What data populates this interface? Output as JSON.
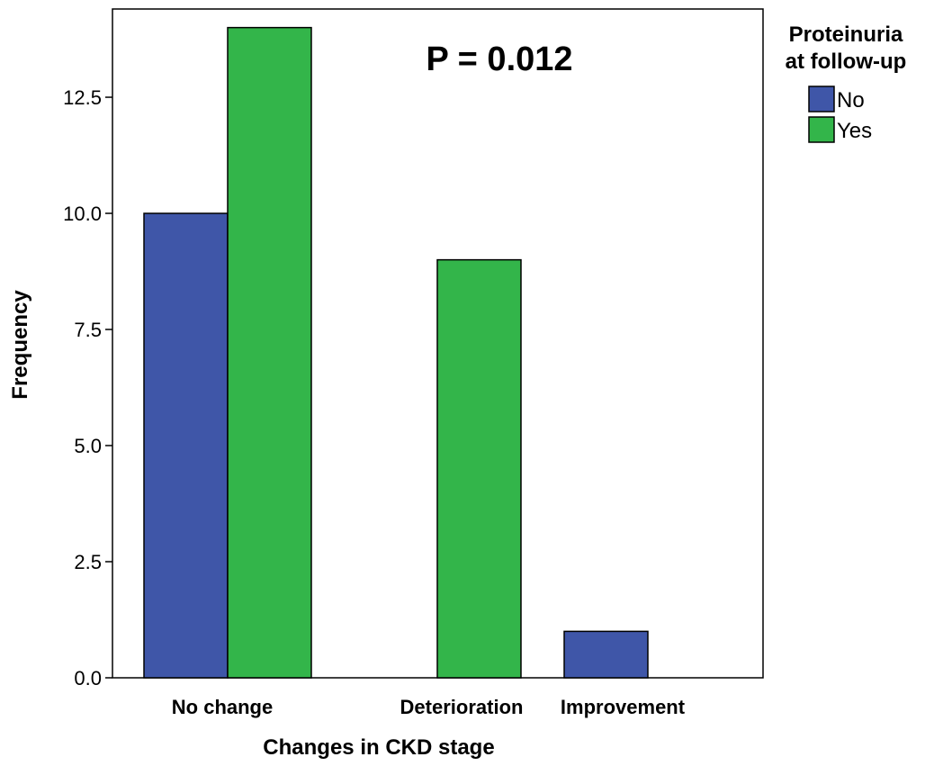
{
  "chart_data": {
    "type": "bar",
    "title": "",
    "annotation": "P = 0.012",
    "xlabel": "Changes in CKD stage",
    "ylabel": "Frequency",
    "categories": [
      "No change",
      "Deterioration",
      "Improvement"
    ],
    "series": [
      {
        "name": "No",
        "color": "#3f56a8",
        "values": [
          10,
          0,
          1
        ]
      },
      {
        "name": "Yes",
        "color": "#33b54a",
        "values": [
          14,
          9,
          0
        ]
      }
    ],
    "ylim": [
      0,
      14.4
    ],
    "yticks": [
      {
        "value": 0,
        "label": "0.0"
      },
      {
        "value": 2.5,
        "label": "2.5"
      },
      {
        "value": 5,
        "label": "5.0"
      },
      {
        "value": 7.5,
        "label": "7.5"
      },
      {
        "value": 10,
        "label": "10.0"
      },
      {
        "value": 12.5,
        "label": "12.5"
      }
    ],
    "legend": {
      "title_lines": [
        "Proteinuria",
        "at follow-up"
      ],
      "placement": "top-right, outside plot"
    },
    "grid": false
  }
}
